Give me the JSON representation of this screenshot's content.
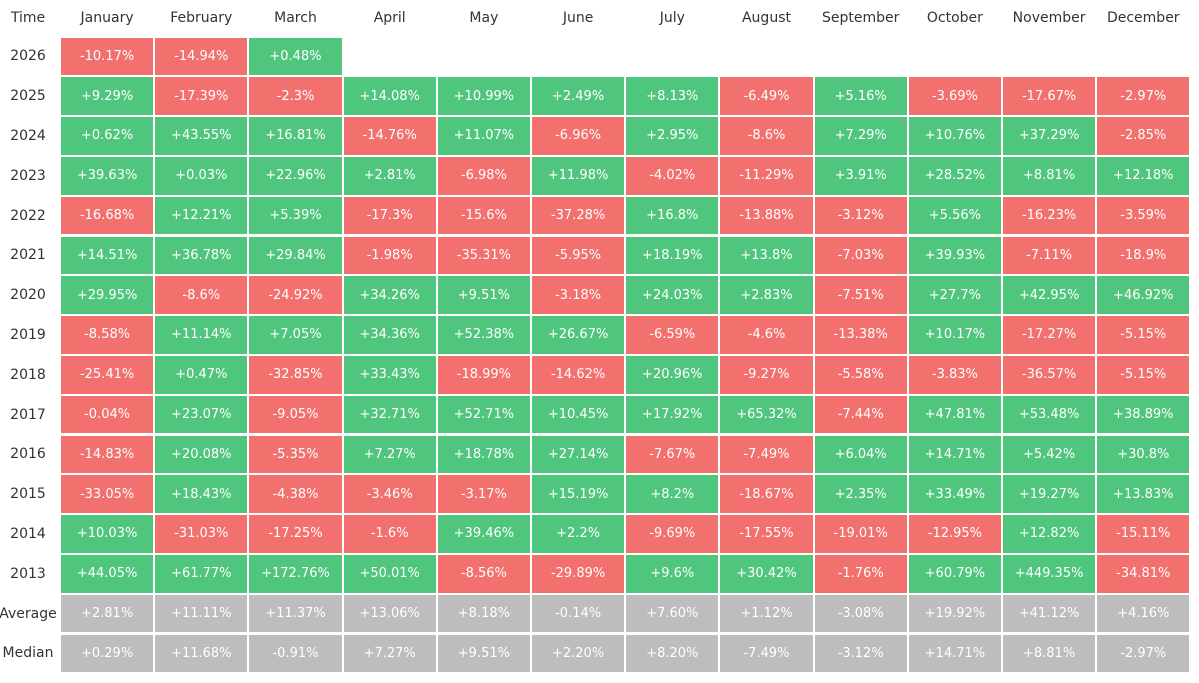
{
  "table": {
    "columns": [
      "Time",
      "January",
      "February",
      "March",
      "April",
      "May",
      "June",
      "July",
      "August",
      "September",
      "October",
      "November",
      "December"
    ],
    "rows": [
      {
        "label": "2026",
        "cells": [
          "-10.17%",
          "-14.94%",
          "+0.48%"
        ]
      },
      {
        "label": "2025",
        "cells": [
          "+9.29%",
          "-17.39%",
          "-2.3%",
          "+14.08%",
          "+10.99%",
          "+2.49%",
          "+8.13%",
          "-6.49%",
          "+5.16%",
          "-3.69%",
          "-17.67%",
          "-2.97%"
        ]
      },
      {
        "label": "2024",
        "cells": [
          "+0.62%",
          "+43.55%",
          "+16.81%",
          "-14.76%",
          "+11.07%",
          "-6.96%",
          "+2.95%",
          "-8.6%",
          "+7.29%",
          "+10.76%",
          "+37.29%",
          "-2.85%"
        ]
      },
      {
        "label": "2023",
        "cells": [
          "+39.63%",
          "+0.03%",
          "+22.96%",
          "+2.81%",
          "-6.98%",
          "+11.98%",
          "-4.02%",
          "-11.29%",
          "+3.91%",
          "+28.52%",
          "+8.81%",
          "+12.18%"
        ]
      },
      {
        "label": "2022",
        "cells": [
          "-16.68%",
          "+12.21%",
          "+5.39%",
          "-17.3%",
          "-15.6%",
          "-37.28%",
          "+16.8%",
          "-13.88%",
          "-3.12%",
          "+5.56%",
          "-16.23%",
          "-3.59%"
        ]
      },
      {
        "label": "2021",
        "cells": [
          "+14.51%",
          "+36.78%",
          "+29.84%",
          "-1.98%",
          "-35.31%",
          "-5.95%",
          "+18.19%",
          "+13.8%",
          "-7.03%",
          "+39.93%",
          "-7.11%",
          "-18.9%"
        ]
      },
      {
        "label": "2020",
        "cells": [
          "+29.95%",
          "-8.6%",
          "-24.92%",
          "+34.26%",
          "+9.51%",
          "-3.18%",
          "+24.03%",
          "+2.83%",
          "-7.51%",
          "+27.7%",
          "+42.95%",
          "+46.92%"
        ]
      },
      {
        "label": "2019",
        "cells": [
          "-8.58%",
          "+11.14%",
          "+7.05%",
          "+34.36%",
          "+52.38%",
          "+26.67%",
          "-6.59%",
          "-4.6%",
          "-13.38%",
          "+10.17%",
          "-17.27%",
          "-5.15%"
        ]
      },
      {
        "label": "2018",
        "cells": [
          "-25.41%",
          "+0.47%",
          "-32.85%",
          "+33.43%",
          "-18.99%",
          "-14.62%",
          "+20.96%",
          "-9.27%",
          "-5.58%",
          "-3.83%",
          "-36.57%",
          "-5.15%"
        ]
      },
      {
        "label": "2017",
        "cells": [
          "-0.04%",
          "+23.07%",
          "-9.05%",
          "+32.71%",
          "+52.71%",
          "+10.45%",
          "+17.92%",
          "+65.32%",
          "-7.44%",
          "+47.81%",
          "+53.48%",
          "+38.89%"
        ]
      },
      {
        "label": "2016",
        "cells": [
          "-14.83%",
          "+20.08%",
          "-5.35%",
          "+7.27%",
          "+18.78%",
          "+27.14%",
          "-7.67%",
          "-7.49%",
          "+6.04%",
          "+14.71%",
          "+5.42%",
          "+30.8%"
        ]
      },
      {
        "label": "2015",
        "cells": [
          "-33.05%",
          "+18.43%",
          "-4.38%",
          "-3.46%",
          "-3.17%",
          "+15.19%",
          "+8.2%",
          "-18.67%",
          "+2.35%",
          "+33.49%",
          "+19.27%",
          "+13.83%"
        ]
      },
      {
        "label": "2014",
        "cells": [
          "+10.03%",
          "-31.03%",
          "-17.25%",
          "-1.6%",
          "+39.46%",
          "+2.2%",
          "-9.69%",
          "-17.55%",
          "-19.01%",
          "-12.95%",
          "+12.82%",
          "-15.11%"
        ]
      },
      {
        "label": "2013",
        "cells": [
          "+44.05%",
          "+61.77%",
          "+172.76%",
          "+50.01%",
          "-8.56%",
          "-29.89%",
          "+9.6%",
          "+30.42%",
          "-1.76%",
          "+60.79%",
          "+449.35%",
          "-34.81%"
        ]
      }
    ],
    "summary": [
      {
        "label": "Average",
        "cells": [
          "+2.81%",
          "+11.11%",
          "+11.37%",
          "+13.06%",
          "+8.18%",
          "-0.14%",
          "+7.60%",
          "+1.12%",
          "-3.08%",
          "+19.92%",
          "+41.12%",
          "+4.16%"
        ]
      },
      {
        "label": "Median",
        "cells": [
          "+0.29%",
          "+11.68%",
          "-0.91%",
          "+7.27%",
          "+9.51%",
          "+2.20%",
          "+8.20%",
          "-7.49%",
          "-3.12%",
          "+14.71%",
          "+8.81%",
          "-2.97%"
        ]
      }
    ]
  }
}
